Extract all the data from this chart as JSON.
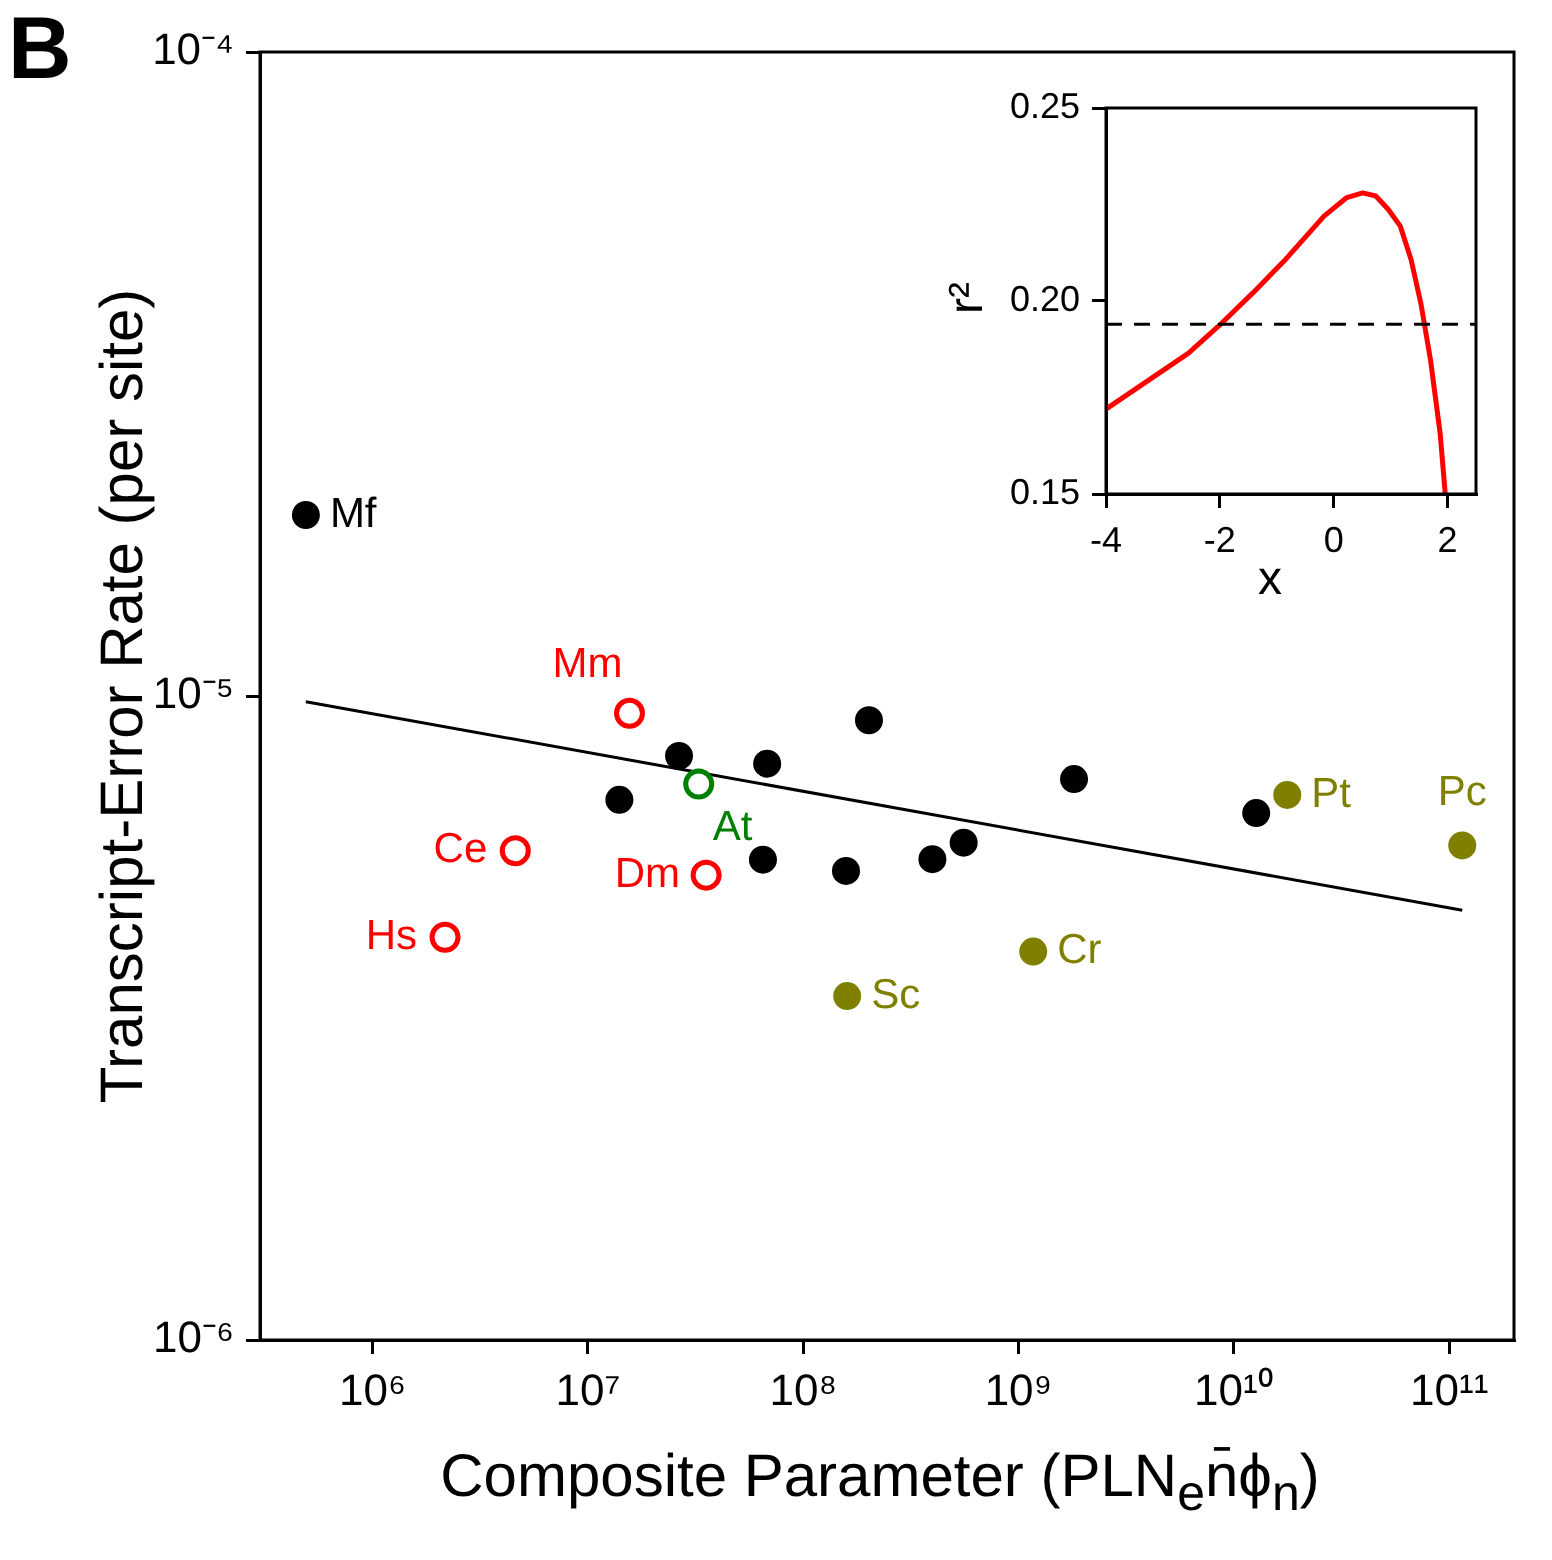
{
  "chart_data": [
    {
      "type": "scatter",
      "xlabel": "Composite Parameter (PLN$_{e}$n̄ϕ$_{n}$)",
      "ylabel": "Transcript-Error Rate (per site)",
      "log": "xy",
      "grid": false,
      "legend": false,
      "marker": "circle",
      "xlim": [
        300000.0,
        200000000000.0
      ],
      "ylim": [
        1e-06,
        0.0001
      ],
      "xticks": [
        {
          "value": 1000000.0,
          "label": "10⁶"
        },
        {
          "value": 10000000.0,
          "label": "10⁷"
        },
        {
          "value": 100000000.0,
          "label": "10⁸"
        },
        {
          "value": 1000000000.0,
          "label": "10⁹"
        },
        {
          "value": 10000000000.0,
          "label": "10¹⁰"
        },
        {
          "value": 100000000000.0,
          "label": "10¹¹"
        }
      ],
      "yticks": [
        {
          "value": 1e-06,
          "label": "10⁻⁶"
        },
        {
          "value": 1e-05,
          "label": "10⁻⁵"
        },
        {
          "value": 0.0001,
          "label": "10⁻⁴"
        }
      ],
      "series": [
        {
          "color": "#000000",
          "x": [
            490000.0,
            26500000.0,
            14000000.0,
            68000000.0,
            65000000.0,
            158000000.0,
            202000000.0,
            1810000000.0,
            12700000000.0,
            398000000.0,
            556000000.0
          ],
          "values": [
            1.91e-05,
            8.07e-06,
            6.9e-06,
            7.85e-06,
            5.57e-06,
            5.35e-06,
            9.17e-06,
            7.43e-06,
            6.58e-06,
            5.58e-06,
            5.92e-06
          ]
        },
        {
          "color": "#ff0000",
          "x": [
            15600000.0,
            4600000.0,
            35400000.0,
            2170000.0
          ],
          "values": [
            9.4e-06,
            5.75e-06,
            5.27e-06,
            4.22e-06
          ]
        },
        {
          "color": "#008000",
          "x": [
            32700000.0
          ],
          "values": [
            7.3e-06
          ]
        },
        {
          "color": "#808000",
          "x": [
            160000000.0,
            1170000000.0,
            17700000000.0,
            115000000000.0
          ],
          "values": [
            3.42e-06,
            4.01e-06,
            7.02e-06,
            5.86e-06
          ]
        },
        {
          "type": "line",
          "color": "#000000",
          "marker": "none",
          "x": [
            490000.0,
            115000000000.0
          ],
          "values": [
            9.8e-06,
            4.65e-06
          ]
        }
      ],
      "annotations": [
        "B",
        {
          "text": "Mf",
          "x": 490000.0,
          "y": 1.91e-05
        },
        {
          "text": "Mm",
          "x": 15600000.0,
          "y": 9.4e-06
        },
        {
          "text": "Ce",
          "x": 4600000.0,
          "y": 5.75e-06
        },
        {
          "text": "Dm",
          "x": 35400000.0,
          "y": 5.27e-06
        },
        {
          "text": "Hs",
          "x": 2170000.0,
          "y": 4.22e-06
        },
        {
          "text": "At",
          "x": 32700000.0,
          "y": 7.3e-06
        },
        {
          "text": "Sc",
          "x": 160000000.0,
          "y": 3.42e-06
        },
        {
          "text": "Cr",
          "x": 1170000000.0,
          "y": 4.01e-06
        },
        {
          "text": "Pt",
          "x": 17700000000.0,
          "y": 7.02e-06
        },
        {
          "text": "Pc",
          "x": 115000000000.0,
          "y": 5.86e-06
        }
      ]
    },
    {
      "type": "line",
      "xlabel": "x",
      "ylabel": "r²",
      "grid": false,
      "legend": false,
      "line_style": "solid",
      "xlim": [
        -4,
        2.5
      ],
      "ylim": [
        0.15,
        0.25
      ],
      "xticks": [
        -4,
        -2,
        0,
        2
      ],
      "yticks": [
        0.15,
        {
          "value": 0.2,
          "label": "0.20"
        },
        0.25
      ],
      "series": [
        {
          "color": "#ff0000",
          "x": [
            -4,
            -2.55,
            -2.0,
            -1.42,
            -0.85,
            -0.17,
            0.23,
            0.51,
            0.74,
            0.96,
            1.17,
            1.36,
            1.53,
            1.7,
            1.87,
            1.96
          ],
          "values": [
            0.172,
            0.1865,
            0.1938,
            0.2021,
            0.2107,
            0.222,
            0.2268,
            0.228,
            0.2272,
            0.2237,
            0.2194,
            0.2107,
            0.1995,
            0.1848,
            0.1657,
            0.15
          ]
        }
      ],
      "ref_lines": [
        {
          "axis": "y",
          "value": 0.194,
          "color": "#000000",
          "line_style": "dashed"
        }
      ]
    }
  ]
}
